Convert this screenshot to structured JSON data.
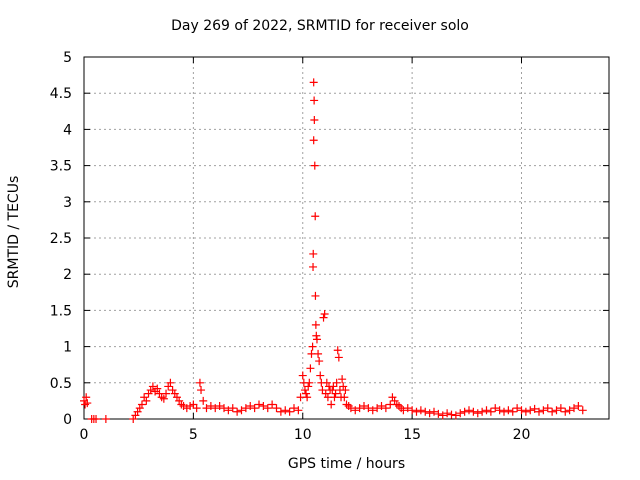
{
  "chart_data": {
    "type": "scatter",
    "title": "Day 269 of 2022, SRMTID for receiver solo",
    "xlabel": "GPS time / hours",
    "ylabel": "SRMTID / TECUs",
    "xlim": [
      0,
      24
    ],
    "ylim": [
      0,
      5
    ],
    "xticks": [
      0,
      5,
      10,
      15,
      20
    ],
    "xtick_labels": [
      "0",
      "5",
      "10",
      "15",
      "20"
    ],
    "yticks": [
      0,
      0.5,
      1,
      1.5,
      2,
      2.5,
      3,
      3.5,
      4,
      4.5,
      5
    ],
    "ytick_labels": [
      "0",
      "0.5",
      "1",
      "1.5",
      "2",
      "2.5",
      "3",
      "3.5",
      "4",
      "4.5",
      "5"
    ],
    "grid": true,
    "legend": "none",
    "marker": "plus",
    "color": "#ff0000",
    "series": [
      {
        "name": "SRMTID",
        "x": [
          0.0,
          0.05,
          0.1,
          0.15,
          0.35,
          0.45,
          0.55,
          1.0,
          2.25,
          2.35,
          2.45,
          2.55,
          2.65,
          2.75,
          2.85,
          2.95,
          3.05,
          3.15,
          3.25,
          3.35,
          3.45,
          3.55,
          3.65,
          3.75,
          3.85,
          3.95,
          4.05,
          4.15,
          4.25,
          4.35,
          4.45,
          4.55,
          4.7,
          4.85,
          5.0,
          5.15,
          5.3,
          5.35,
          5.45,
          5.6,
          5.8,
          6.0,
          6.2,
          6.4,
          6.6,
          6.8,
          7.0,
          7.2,
          7.4,
          7.6,
          7.8,
          8.0,
          8.2,
          8.4,
          8.6,
          8.8,
          9.0,
          9.2,
          9.4,
          9.6,
          9.8,
          9.9,
          10.0,
          10.05,
          10.1,
          10.15,
          10.2,
          10.25,
          10.3,
          10.35,
          10.4,
          10.45,
          10.47,
          10.48,
          10.5,
          10.5,
          10.52,
          10.53,
          10.55,
          10.57,
          10.58,
          10.6,
          10.62,
          10.65,
          10.7,
          10.75,
          10.8,
          10.85,
          10.9,
          10.95,
          11.0,
          11.05,
          11.1,
          11.15,
          11.2,
          11.25,
          11.3,
          11.35,
          11.4,
          11.45,
          11.5,
          11.55,
          11.6,
          11.65,
          11.7,
          11.75,
          11.8,
          11.85,
          11.9,
          11.95,
          12.0,
          12.1,
          12.2,
          12.4,
          12.6,
          12.8,
          13.0,
          13.2,
          13.4,
          13.6,
          13.8,
          14.0,
          14.1,
          14.2,
          14.3,
          14.4,
          14.5,
          14.6,
          14.8,
          15.0,
          15.2,
          15.4,
          15.6,
          15.8,
          16.0,
          16.2,
          16.4,
          16.6,
          16.8,
          17.0,
          17.2,
          17.4,
          17.6,
          17.8,
          18.0,
          18.2,
          18.4,
          18.6,
          18.8,
          19.0,
          19.2,
          19.4,
          19.6,
          19.8,
          20.0,
          20.2,
          20.4,
          20.6,
          20.8,
          21.0,
          21.2,
          21.4,
          21.6,
          21.8,
          22.0,
          22.2,
          22.4,
          22.6,
          22.8
        ],
        "y": [
          0.25,
          0.2,
          0.3,
          0.22,
          0.0,
          0.0,
          0.0,
          0.0,
          0.0,
          0.05,
          0.1,
          0.15,
          0.2,
          0.3,
          0.25,
          0.35,
          0.4,
          0.45,
          0.38,
          0.42,
          0.35,
          0.3,
          0.28,
          0.35,
          0.45,
          0.5,
          0.4,
          0.35,
          0.3,
          0.25,
          0.2,
          0.18,
          0.15,
          0.18,
          0.2,
          0.15,
          0.5,
          0.4,
          0.25,
          0.15,
          0.18,
          0.15,
          0.18,
          0.15,
          0.12,
          0.15,
          0.1,
          0.12,
          0.15,
          0.18,
          0.15,
          0.2,
          0.18,
          0.15,
          0.2,
          0.15,
          0.1,
          0.12,
          0.1,
          0.15,
          0.12,
          0.3,
          0.6,
          0.5,
          0.4,
          0.35,
          0.3,
          0.45,
          0.5,
          0.7,
          0.9,
          1.0,
          2.1,
          2.28,
          3.85,
          4.65,
          4.4,
          4.13,
          3.5,
          2.8,
          1.7,
          1.3,
          1.15,
          1.1,
          0.9,
          0.8,
          0.6,
          0.5,
          0.4,
          1.4,
          1.45,
          0.35,
          0.5,
          0.3,
          0.45,
          0.4,
          0.2,
          0.4,
          0.45,
          0.3,
          0.35,
          0.5,
          0.95,
          0.85,
          0.4,
          0.3,
          0.55,
          0.45,
          0.3,
          0.4,
          0.2,
          0.18,
          0.15,
          0.12,
          0.15,
          0.18,
          0.15,
          0.12,
          0.15,
          0.18,
          0.15,
          0.2,
          0.3,
          0.25,
          0.2,
          0.18,
          0.15,
          0.12,
          0.15,
          0.12,
          0.1,
          0.12,
          0.1,
          0.08,
          0.1,
          0.07,
          0.05,
          0.08,
          0.06,
          0.05,
          0.08,
          0.1,
          0.12,
          0.1,
          0.08,
          0.1,
          0.12,
          0.1,
          0.15,
          0.12,
          0.1,
          0.12,
          0.1,
          0.15,
          0.12,
          0.1,
          0.12,
          0.14,
          0.1,
          0.12,
          0.15,
          0.1,
          0.12,
          0.15,
          0.1,
          0.12,
          0.15,
          0.18,
          0.12
        ]
      }
    ]
  }
}
